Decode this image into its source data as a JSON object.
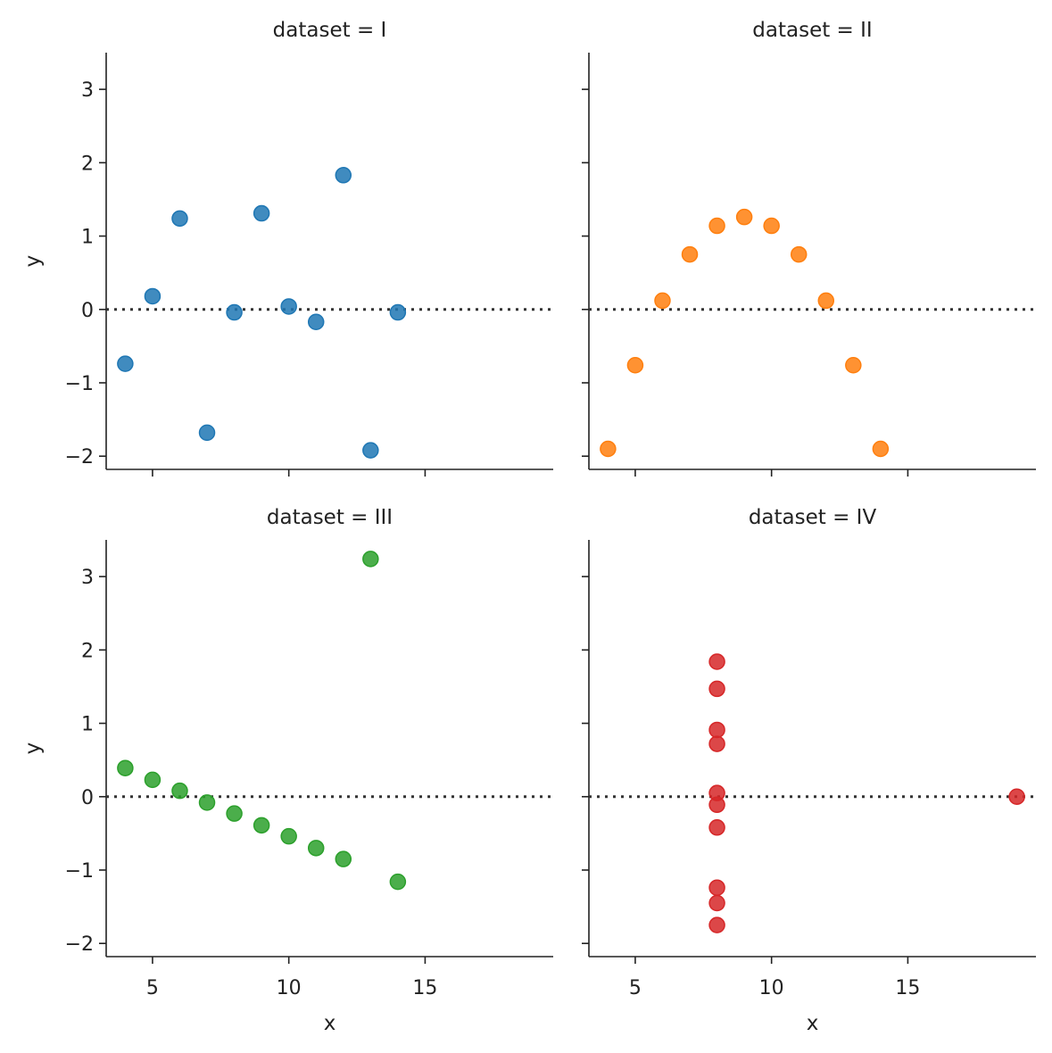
{
  "chart_data": {
    "type": "scatter",
    "layout": "facet-grid",
    "xlabel": "x",
    "ylabel": "y",
    "xlim": [
      3.3,
      19.7
    ],
    "ylim": [
      -2.18,
      3.5
    ],
    "x_ticks": [
      5,
      10,
      15
    ],
    "y_ticks": [
      -2,
      -1,
      0,
      1,
      2,
      3
    ],
    "reference_line": {
      "y": 0,
      "style": "dotted",
      "color": "#333333"
    },
    "grid": false,
    "panels": [
      {
        "title": "dataset = I",
        "color": "#1f77b4",
        "points": [
          {
            "x": 4,
            "y": -0.74
          },
          {
            "x": 5,
            "y": 0.18
          },
          {
            "x": 6,
            "y": 1.24
          },
          {
            "x": 7,
            "y": -1.68
          },
          {
            "x": 8,
            "y": -0.04
          },
          {
            "x": 9,
            "y": 1.31
          },
          {
            "x": 10,
            "y": 0.04
          },
          {
            "x": 11,
            "y": -0.17
          },
          {
            "x": 12,
            "y": 1.83
          },
          {
            "x": 13,
            "y": -1.92
          },
          {
            "x": 14,
            "y": -0.04
          }
        ]
      },
      {
        "title": "dataset = II",
        "color": "#ff7f0e",
        "points": [
          {
            "x": 4,
            "y": -1.9
          },
          {
            "x": 5,
            "y": -0.76
          },
          {
            "x": 6,
            "y": 0.12
          },
          {
            "x": 7,
            "y": 0.75
          },
          {
            "x": 8,
            "y": 1.14
          },
          {
            "x": 9,
            "y": 1.26
          },
          {
            "x": 10,
            "y": 1.14
          },
          {
            "x": 11,
            "y": 0.75
          },
          {
            "x": 12,
            "y": 0.12
          },
          {
            "x": 13,
            "y": -0.76
          },
          {
            "x": 14,
            "y": -1.9
          }
        ]
      },
      {
        "title": "dataset = III",
        "color": "#2ca02c",
        "points": [
          {
            "x": 4,
            "y": 0.39
          },
          {
            "x": 5,
            "y": 0.23
          },
          {
            "x": 6,
            "y": 0.08
          },
          {
            "x": 7,
            "y": -0.08
          },
          {
            "x": 8,
            "y": -0.23
          },
          {
            "x": 9,
            "y": -0.39
          },
          {
            "x": 10,
            "y": -0.54
          },
          {
            "x": 11,
            "y": -0.7
          },
          {
            "x": 12,
            "y": -0.85
          },
          {
            "x": 13,
            "y": 3.24
          },
          {
            "x": 14,
            "y": -1.16
          }
        ]
      },
      {
        "title": "dataset = IV",
        "color": "#d62728",
        "points": [
          {
            "x": 8,
            "y": 1.84
          },
          {
            "x": 8,
            "y": 1.47
          },
          {
            "x": 8,
            "y": 0.91
          },
          {
            "x": 8,
            "y": 0.72
          },
          {
            "x": 8,
            "y": 0.05
          },
          {
            "x": 8,
            "y": -0.11
          },
          {
            "x": 8,
            "y": -0.42
          },
          {
            "x": 8,
            "y": -1.24
          },
          {
            "x": 8,
            "y": -1.45
          },
          {
            "x": 8,
            "y": -1.75
          },
          {
            "x": 19,
            "y": 0.0
          }
        ]
      }
    ]
  }
}
